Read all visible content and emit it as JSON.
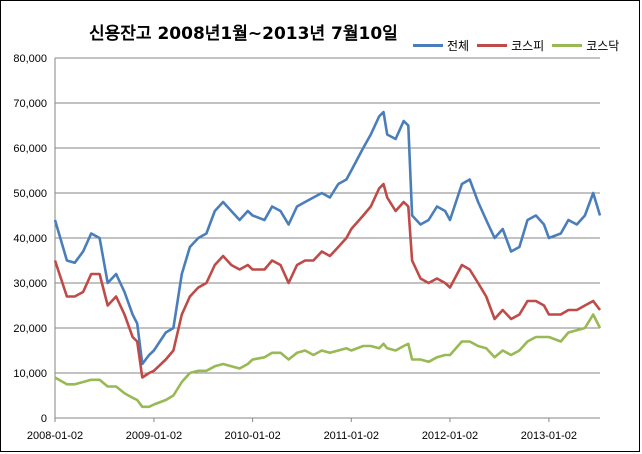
{
  "chart_data": {
    "type": "line",
    "title": "신용잔고  2008년1월~2013년 7월10일",
    "xlabel": "",
    "ylabel": "",
    "ylim": [
      0,
      80000
    ],
    "yticks": [
      "0",
      "10,000",
      "20,000",
      "30,000",
      "40,000",
      "50,000",
      "60,000",
      "70,000",
      "80,000"
    ],
    "xticks": [
      "2008-01-02",
      "2009-01-02",
      "2010-01-02",
      "2011-01-02",
      "2012-01-02",
      "2013-01-02"
    ],
    "x_range": [
      "2008-01-02",
      "2013-07-10"
    ],
    "grid": "horizontal",
    "legend_position": "top-right",
    "series": [
      {
        "name": "전체",
        "color": "#4a7ebb",
        "x": [
          "2008-01-02",
          "2008-02-15",
          "2008-03-15",
          "2008-04-15",
          "2008-05-15",
          "2008-06-15",
          "2008-07-15",
          "2008-08-15",
          "2008-09-15",
          "2008-10-15",
          "2008-11-01",
          "2008-11-20",
          "2008-12-15",
          "2009-01-02",
          "2009-02-15",
          "2009-03-15",
          "2009-04-15",
          "2009-05-15",
          "2009-06-15",
          "2009-07-15",
          "2009-08-15",
          "2009-09-15",
          "2009-10-15",
          "2009-11-15",
          "2009-12-15",
          "2010-01-02",
          "2010-02-15",
          "2010-03-15",
          "2010-04-15",
          "2010-05-15",
          "2010-06-15",
          "2010-07-15",
          "2010-08-15",
          "2010-09-15",
          "2010-10-15",
          "2010-11-15",
          "2010-12-15",
          "2011-01-02",
          "2011-02-15",
          "2011-03-15",
          "2011-04-15",
          "2011-05-01",
          "2011-05-15",
          "2011-06-15",
          "2011-07-15",
          "2011-08-01",
          "2011-08-15",
          "2011-09-15",
          "2011-10-15",
          "2011-11-15",
          "2011-12-15",
          "2012-01-02",
          "2012-02-15",
          "2012-03-15",
          "2012-04-15",
          "2012-05-15",
          "2012-06-15",
          "2012-07-15",
          "2012-08-15",
          "2012-09-15",
          "2012-10-15",
          "2012-11-15",
          "2012-12-15",
          "2013-01-02",
          "2013-02-15",
          "2013-03-15",
          "2013-04-15",
          "2013-05-15",
          "2013-06-15",
          "2013-07-10"
        ],
        "values": [
          44000,
          35000,
          34500,
          37000,
          41000,
          40000,
          30000,
          32000,
          28000,
          23000,
          21000,
          12000,
          14000,
          15000,
          19000,
          20000,
          32000,
          38000,
          40000,
          41000,
          46000,
          48000,
          46000,
          44000,
          46000,
          45000,
          44000,
          47000,
          46000,
          43000,
          47000,
          48000,
          49000,
          50000,
          49000,
          52000,
          53000,
          55000,
          60000,
          63000,
          67000,
          68000,
          63000,
          62000,
          66000,
          65000,
          45000,
          43000,
          44000,
          47000,
          46000,
          44000,
          52000,
          53000,
          48000,
          44000,
          40000,
          42000,
          37000,
          38000,
          44000,
          45000,
          43000,
          40000,
          41000,
          44000,
          43000,
          45000,
          50000,
          45000
        ]
      },
      {
        "name": "코스피",
        "color": "#be4b48",
        "x": [
          "2008-01-02",
          "2008-02-15",
          "2008-03-15",
          "2008-04-15",
          "2008-05-15",
          "2008-06-15",
          "2008-07-15",
          "2008-08-15",
          "2008-09-15",
          "2008-10-15",
          "2008-11-01",
          "2008-11-20",
          "2008-12-15",
          "2009-01-02",
          "2009-02-15",
          "2009-03-15",
          "2009-04-15",
          "2009-05-15",
          "2009-06-15",
          "2009-07-15",
          "2009-08-15",
          "2009-09-15",
          "2009-10-15",
          "2009-11-15",
          "2009-12-15",
          "2010-01-02",
          "2010-02-15",
          "2010-03-15",
          "2010-04-15",
          "2010-05-15",
          "2010-06-15",
          "2010-07-15",
          "2010-08-15",
          "2010-09-15",
          "2010-10-15",
          "2010-11-15",
          "2010-12-15",
          "2011-01-02",
          "2011-02-15",
          "2011-03-15",
          "2011-04-15",
          "2011-05-01",
          "2011-05-15",
          "2011-06-15",
          "2011-07-15",
          "2011-08-01",
          "2011-08-15",
          "2011-09-15",
          "2011-10-15",
          "2011-11-15",
          "2011-12-15",
          "2012-01-02",
          "2012-02-15",
          "2012-03-15",
          "2012-04-15",
          "2012-05-15",
          "2012-06-15",
          "2012-07-15",
          "2012-08-15",
          "2012-09-15",
          "2012-10-15",
          "2012-11-15",
          "2012-12-15",
          "2013-01-02",
          "2013-02-15",
          "2013-03-15",
          "2013-04-15",
          "2013-05-15",
          "2013-06-15",
          "2013-07-10"
        ],
        "values": [
          35000,
          27000,
          27000,
          28000,
          32000,
          32000,
          25000,
          27000,
          23000,
          18000,
          17000,
          9000,
          10000,
          10500,
          13000,
          15000,
          23000,
          27000,
          29000,
          30000,
          34000,
          36000,
          34000,
          33000,
          34000,
          33000,
          33000,
          35000,
          34000,
          30000,
          34000,
          35000,
          35000,
          37000,
          36000,
          38000,
          40000,
          42000,
          45000,
          47000,
          51000,
          52000,
          49000,
          46000,
          48000,
          47000,
          35000,
          31000,
          30000,
          31000,
          30000,
          29000,
          34000,
          33000,
          30000,
          27000,
          22000,
          24000,
          22000,
          23000,
          26000,
          26000,
          25000,
          23000,
          23000,
          24000,
          24000,
          25000,
          26000,
          24000
        ]
      },
      {
        "name": "코스닥",
        "color": "#98b954",
        "x": [
          "2008-01-02",
          "2008-02-15",
          "2008-03-15",
          "2008-04-15",
          "2008-05-15",
          "2008-06-15",
          "2008-07-15",
          "2008-08-15",
          "2008-09-15",
          "2008-10-15",
          "2008-11-01",
          "2008-11-20",
          "2008-12-15",
          "2009-01-02",
          "2009-02-15",
          "2009-03-15",
          "2009-04-15",
          "2009-05-15",
          "2009-06-15",
          "2009-07-15",
          "2009-08-15",
          "2009-09-15",
          "2009-10-15",
          "2009-11-15",
          "2009-12-15",
          "2010-01-02",
          "2010-02-15",
          "2010-03-15",
          "2010-04-15",
          "2010-05-15",
          "2010-06-15",
          "2010-07-15",
          "2010-08-15",
          "2010-09-15",
          "2010-10-15",
          "2010-11-15",
          "2010-12-15",
          "2011-01-02",
          "2011-02-15",
          "2011-03-15",
          "2011-04-15",
          "2011-05-01",
          "2011-05-15",
          "2011-06-15",
          "2011-07-15",
          "2011-08-01",
          "2011-08-15",
          "2011-09-15",
          "2011-10-15",
          "2011-11-15",
          "2011-12-15",
          "2012-01-02",
          "2012-02-15",
          "2012-03-15",
          "2012-04-15",
          "2012-05-15",
          "2012-06-15",
          "2012-07-15",
          "2012-08-15",
          "2012-09-15",
          "2012-10-15",
          "2012-11-15",
          "2012-12-15",
          "2013-01-02",
          "2013-02-15",
          "2013-03-15",
          "2013-04-15",
          "2013-05-15",
          "2013-06-15",
          "2013-07-10"
        ],
        "values": [
          9000,
          7500,
          7500,
          8000,
          8500,
          8500,
          7000,
          7000,
          5500,
          4500,
          4000,
          2500,
          2500,
          3000,
          4000,
          5000,
          8000,
          10000,
          10500,
          10500,
          11500,
          12000,
          11500,
          11000,
          12000,
          13000,
          13500,
          14500,
          14500,
          13000,
          14500,
          15000,
          14000,
          15000,
          14500,
          15000,
          15500,
          15000,
          16000,
          16000,
          15500,
          16500,
          15500,
          15000,
          16000,
          16500,
          13000,
          13000,
          12500,
          13500,
          14000,
          14000,
          17000,
          17000,
          16000,
          15500,
          13500,
          15000,
          14000,
          15000,
          17000,
          18000,
          18000,
          18000,
          17000,
          19000,
          19500,
          20000,
          23000,
          20000
        ]
      }
    ]
  }
}
